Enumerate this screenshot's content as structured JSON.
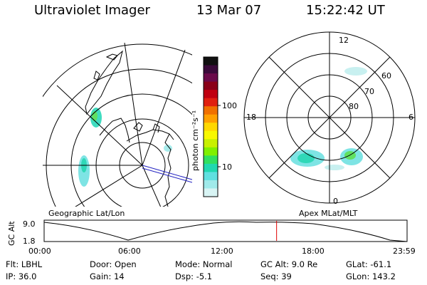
{
  "header": {
    "title": "Ultraviolet Imager",
    "date": "13 Mar 07",
    "time": "15:22:42 UT"
  },
  "colorbar": {
    "unit_label": "photon cm⁻²s⁻¹",
    "ticks": [
      "100",
      "10"
    ],
    "colors": [
      "#101010",
      "#3a0a3a",
      "#6a0a4a",
      "#8a0018",
      "#c00010",
      "#e02010",
      "#f07000",
      "#ffa000",
      "#ffd800",
      "#f8f800",
      "#c8f000",
      "#80f000",
      "#30e060",
      "#20d8b0",
      "#60e0e0",
      "#a0eaea",
      "#d8f4f4"
    ]
  },
  "panels": {
    "left_label": "Geographic Lat/Lon",
    "right_label": "Apex MLat/MLT"
  },
  "polar": {
    "mlt_labels": {
      "top": "12",
      "bottom": "0",
      "left": "18",
      "right": "6"
    },
    "lat_labels": [
      "60",
      "70",
      "80"
    ]
  },
  "orbit": {
    "ylabel": "GC Alt",
    "y_ticks": [
      "9.0",
      "1.8"
    ],
    "x_ticks": [
      "00:00",
      "06:00",
      "12:00",
      "18:00",
      "23:59"
    ],
    "current_time_fraction": 0.6405,
    "marker_color": "#e00000"
  },
  "info": {
    "row1": [
      {
        "label": "Flt:",
        "value": "LBHL"
      },
      {
        "label": "Door:",
        "value": "Open"
      },
      {
        "label": "Mode:",
        "value": "Normal"
      },
      {
        "label": "GC Alt:",
        "value": "9.0 Re"
      },
      {
        "label": "GLat:",
        "value": "-61.1"
      }
    ],
    "row2": [
      {
        "label": "IP:",
        "value": "36.0"
      },
      {
        "label": "Gain:",
        "value": "14"
      },
      {
        "label": "Dsp:",
        "value": "-5.1"
      },
      {
        "label": "Seq:",
        "value": "39"
      },
      {
        "label": "GLon:",
        "value": "143.2"
      }
    ]
  }
}
